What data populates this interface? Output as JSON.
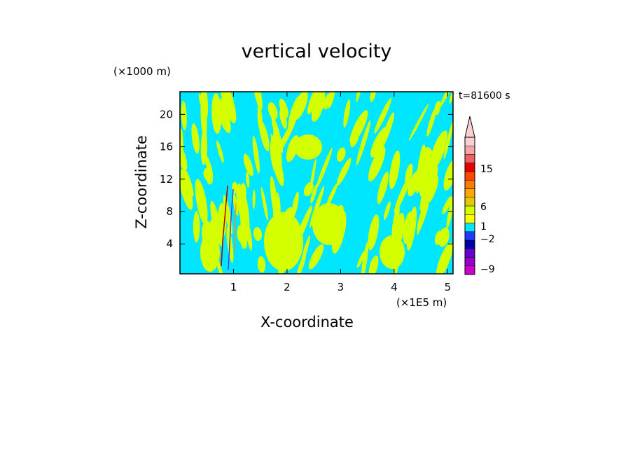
{
  "chart_data": {
    "type": "heatmap",
    "title": "vertical velocity",
    "xlabel": "X-coordinate",
    "ylabel": "Z-coordinate",
    "x_unit": "(×1E5 m)",
    "y_unit": "(×1000 m)",
    "time_label": "t=81600 s",
    "xlim": [
      0,
      5.1
    ],
    "ylim": [
      0.3,
      22.8
    ],
    "x_ticks": [
      1,
      2,
      3,
      4,
      5
    ],
    "y_ticks": [
      4,
      8,
      12,
      16,
      20
    ],
    "colorbar": {
      "tick_labels": [
        "15",
        "6",
        "1",
        "−2",
        "−9"
      ],
      "colors": [
        "#cc00cc",
        "#9900cc",
        "#6a00cc",
        "#0000aa",
        "#1e3cff",
        "#00e6ff",
        "#ffff00",
        "#d4ff00",
        "#e6c800",
        "#ffa500",
        "#ff7a00",
        "#ff4500",
        "#e60000",
        "#f06060",
        "#f4a6a6",
        "#f8d0d0"
      ],
      "extend": "max"
    },
    "dominant_fields": [
      "cyan (weak downward)",
      "yellow-green (weak upward)"
    ],
    "features": "alternating tilted bands of weak up/down motion; narrow strong updraft/downdraft pair near x≈0.9–1.1 below z≈12"
  }
}
